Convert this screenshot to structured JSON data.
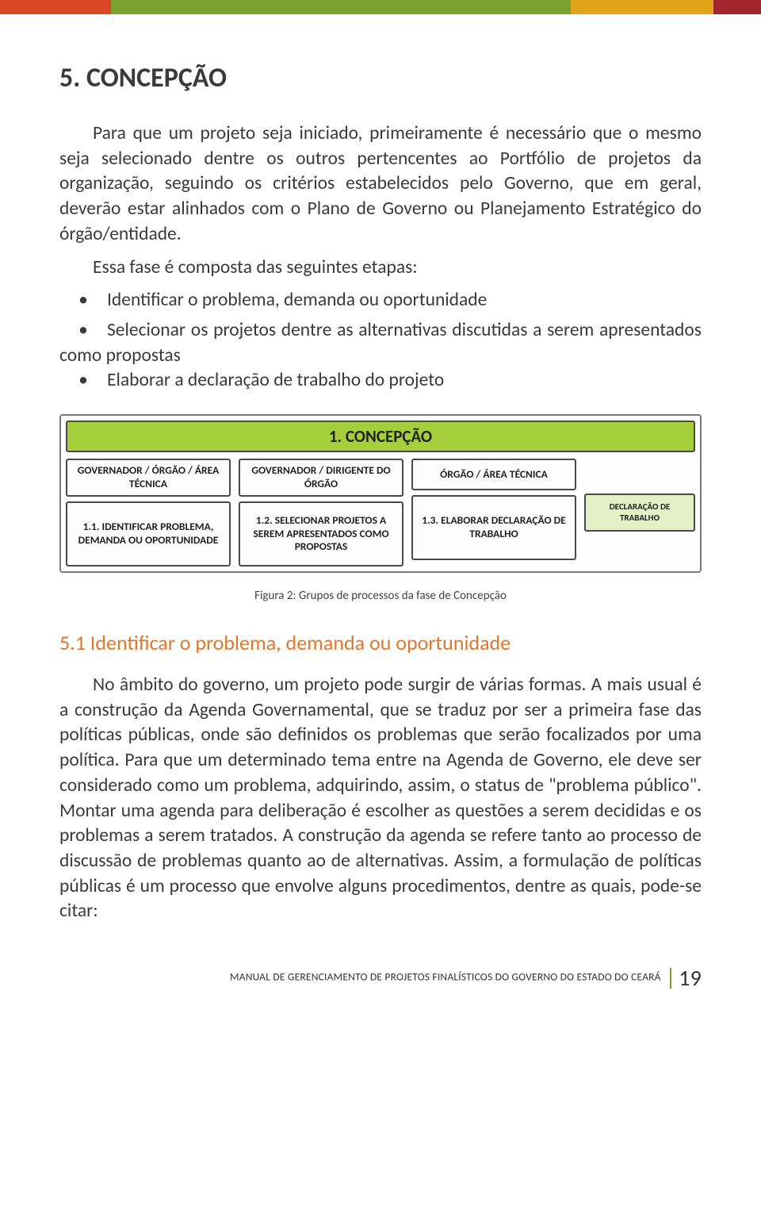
{
  "stripe_colors": [
    "#d94826",
    "#7aa22f",
    "#e2a21a",
    "#a0262b"
  ],
  "stripe_widths": [
    140,
    580,
    180,
    60
  ],
  "heading": "5. CONCEPÇÃO",
  "para1": "Para que um projeto seja iniciado, primeiramente é necessário que o mesmo seja selecionado dentre os outros pertencentes ao Portfólio de projetos da organização, seguindo os critérios estabelecidos pelo Governo, que em geral, deverão estar alinhados com o Plano de Governo ou Planejamento Estratégico do órgão/entidade.",
  "para2": "Essa fase é composta das seguintes etapas:",
  "bullets": [
    "Identificar o problema, demanda ou oportunidade",
    "Selecionar os projetos dentre as alternativas discutidas a serem apresentados como propostas",
    "Elaborar a declaração de trabalho do projeto"
  ],
  "diagram": {
    "title": "1. CONCEPÇÃO",
    "header_bg": "#a4cf3b",
    "col1": {
      "top": "GOVERNADOR / ÓRGÃO / ÁREA TÉCNICA",
      "main": "1.1. IDENTIFICAR PROBLEMA, DEMANDA OU OPORTUNIDADE"
    },
    "col2": {
      "top": "GOVERNADOR / DIRIGENTE DO ÓRGÃO",
      "main": "1.2. SELECIONAR PROJETOS A SEREM APRESENTADOS COMO PROPOSTAS"
    },
    "col3": {
      "top": "ÓRGÃO / ÁREA TÉCNICA",
      "main": "1.3. ELABORAR DECLARAÇÃO DE TRABALHO"
    },
    "col4": {
      "small": "DECLARAÇÃO DE TRABALHO",
      "bg": "#e7efc6"
    }
  },
  "figure_caption": "Figura 2: Grupos de processos da fase de Concepção",
  "subsection_title": "5.1 Identificar o problema, demanda ou oportunidade",
  "subsection_color": "#e2762a",
  "para3": "No âmbito do governo, um projeto pode surgir de várias formas. A mais usual é a construção da Agenda Governamental, que se traduz por ser a primeira fase das políticas públicas, onde são definidos os problemas que serão focalizados por uma política. Para que um determinado tema entre na Agenda de Governo, ele deve ser considerado como um problema, adquirindo, assim, o status de \"problema público\". Montar uma agenda para deliberação é escolher as questões a serem decididas e os problemas a serem tratados. A construção da agenda se refere tanto ao processo de discussão de problemas quanto ao de alternativas. Assim, a formulação de políticas públicas é um processo que envolve alguns procedimentos, dentre as quais, pode-se citar:",
  "footer": {
    "text": "MANUAL DE GERENCIAMENTO DE PROJETOS FINALÍSTICOS DO GOVERNO DO ESTADO DO CEARÁ",
    "sep_color": "#7aa22f",
    "page": "19"
  }
}
